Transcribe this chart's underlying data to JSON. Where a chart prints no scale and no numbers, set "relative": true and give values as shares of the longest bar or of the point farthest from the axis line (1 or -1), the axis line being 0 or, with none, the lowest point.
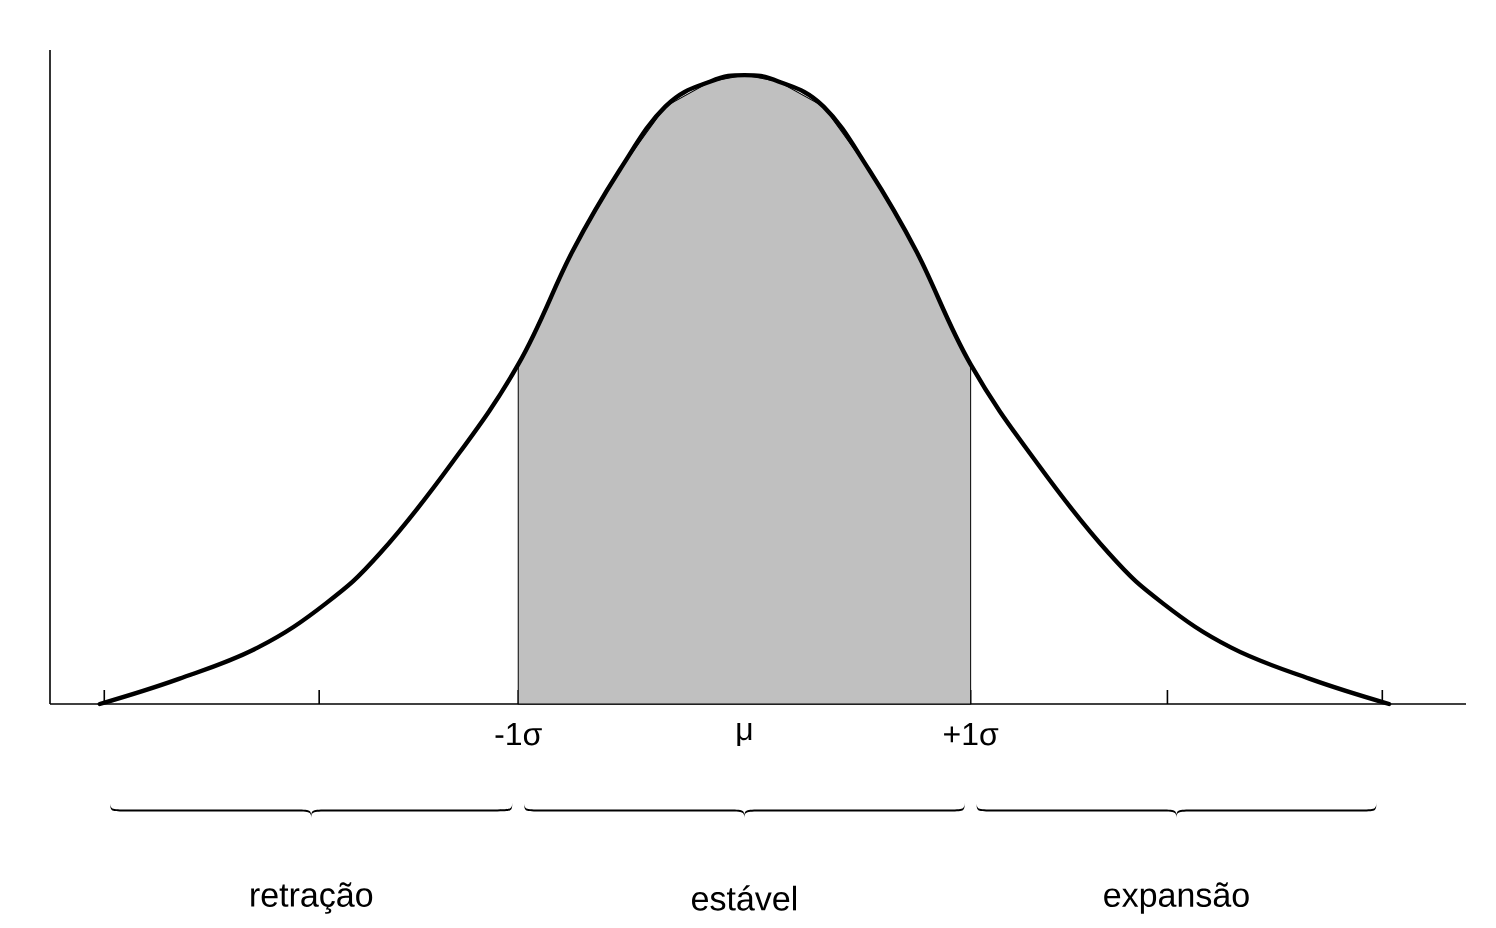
{
  "chart_data": {
    "type": "line",
    "relative": true,
    "tick_labels": "x",
    "xlim": [
      -3.07,
      3.19
    ],
    "xticks": [
      {
        "value": -2.83,
        "label": null
      },
      {
        "value": -1.88,
        "label": null
      },
      {
        "value": -1,
        "label": "-1σ"
      },
      {
        "value": 0,
        "label": "μ"
      },
      {
        "value": 1,
        "label": "+1σ"
      },
      {
        "value": 1.87,
        "label": null
      },
      {
        "value": 2.82,
        "label": null
      }
    ],
    "series": [
      {
        "type": "area",
        "color": "#c0c0c0",
        "x": [
          -1,
          -0.76,
          -0.55,
          -0.35,
          -0.15,
          0,
          0.15,
          0.35,
          0.55,
          0.76,
          1
        ],
        "values": [
          0.54,
          0.72,
          0.85,
          0.95,
          0.99,
          1,
          0.99,
          0.95,
          0.85,
          0.72,
          0.54
        ]
      },
      {
        "color": "#000000",
        "x": [
          -2.85,
          -2.5,
          -2.15,
          -1.85,
          -1.61,
          -1.3,
          -1,
          -0.76,
          -0.55,
          -0.35,
          -0.15,
          0,
          0.15,
          0.35,
          0.55,
          0.76,
          1,
          1.3,
          1.61,
          1.85,
          2.15,
          2.5,
          2.85
        ],
        "values": [
          0,
          0.04,
          0.09,
          0.16,
          0.24,
          0.38,
          0.54,
          0.72,
          0.85,
          0.95,
          0.99,
          1,
          0.99,
          0.95,
          0.85,
          0.72,
          0.54,
          0.38,
          0.24,
          0.16,
          0.09,
          0.04,
          0
        ]
      }
    ],
    "annotations": [
      "retração",
      "estável",
      "expansão"
    ]
  }
}
